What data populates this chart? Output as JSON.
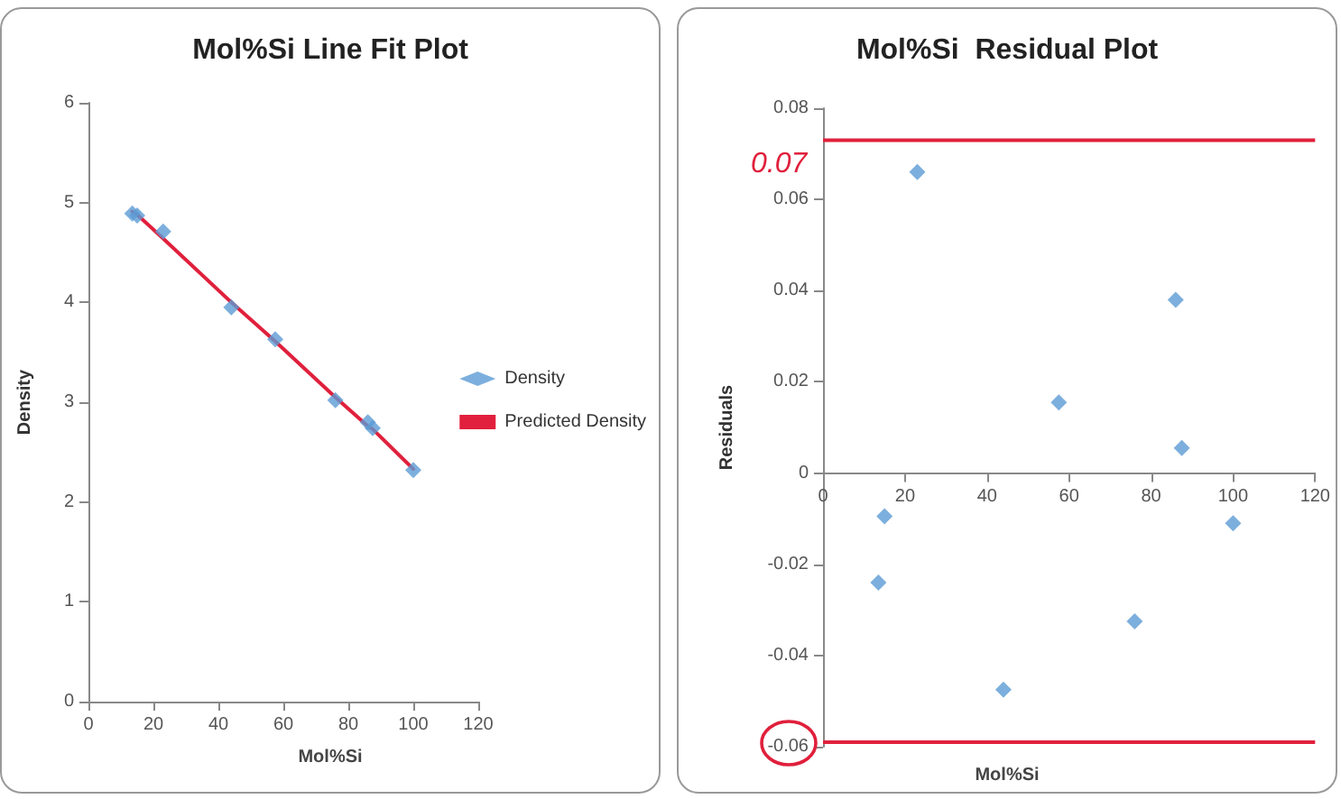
{
  "chart_data": [
    {
      "type": "scatter",
      "title": "Mol%Si Line Fit Plot",
      "xlabel": "Mol%Si",
      "ylabel": "Density",
      "x": [
        13.5,
        15,
        23,
        44,
        57.5,
        76,
        86,
        87.5,
        100
      ],
      "series": [
        {
          "name": "Density",
          "type": "scatter",
          "color": "#5b9bd5",
          "marker": "diamond",
          "values": [
            4.89,
            4.87,
            4.71,
            3.95,
            3.63,
            3.02,
            2.8,
            2.74,
            2.32
          ]
        },
        {
          "name": "Predicted Density",
          "type": "line",
          "color": "#e0203c",
          "marker": "none",
          "values": [
            4.91,
            4.88,
            4.64,
            4.0,
            3.61,
            3.05,
            2.76,
            2.73,
            2.33
          ]
        }
      ],
      "xlim": [
        0,
        120
      ],
      "xticks": [
        0,
        20,
        40,
        60,
        80,
        100,
        120
      ],
      "ylim": [
        0,
        6
      ],
      "yticks": [
        0,
        1,
        2,
        3,
        4,
        5,
        6
      ],
      "grid": false,
      "legend": "right"
    },
    {
      "type": "scatter",
      "title": "Mol%Si  Residual Plot",
      "xlabel": "Mol%Si",
      "ylabel": "Residuals",
      "x": [
        13.5,
        15,
        23,
        44,
        57.5,
        76,
        86,
        87.5,
        100
      ],
      "series": [
        {
          "type": "scatter",
          "color": "#5b9bd5",
          "marker": "diamond",
          "values": [
            -0.024,
            -0.0095,
            0.066,
            -0.0475,
            0.0155,
            -0.0325,
            0.038,
            0.0055,
            -0.011
          ]
        }
      ],
      "xlim": [
        0,
        120
      ],
      "xticks": [
        0,
        20,
        40,
        60,
        80,
        100,
        120
      ],
      "ylim": [
        -0.06,
        0.08
      ],
      "yticks": [
        -0.06,
        -0.04,
        -0.02,
        0,
        0.02,
        0.04,
        0.06,
        0.08
      ],
      "grid": false,
      "legend": false,
      "ref_lines": [
        {
          "axis": "y",
          "value": 0.073,
          "color": "#e0203c"
        },
        {
          "axis": "y",
          "value": -0.059,
          "color": "#e0203c"
        }
      ],
      "annotations": [
        "0.07"
      ]
    }
  ]
}
